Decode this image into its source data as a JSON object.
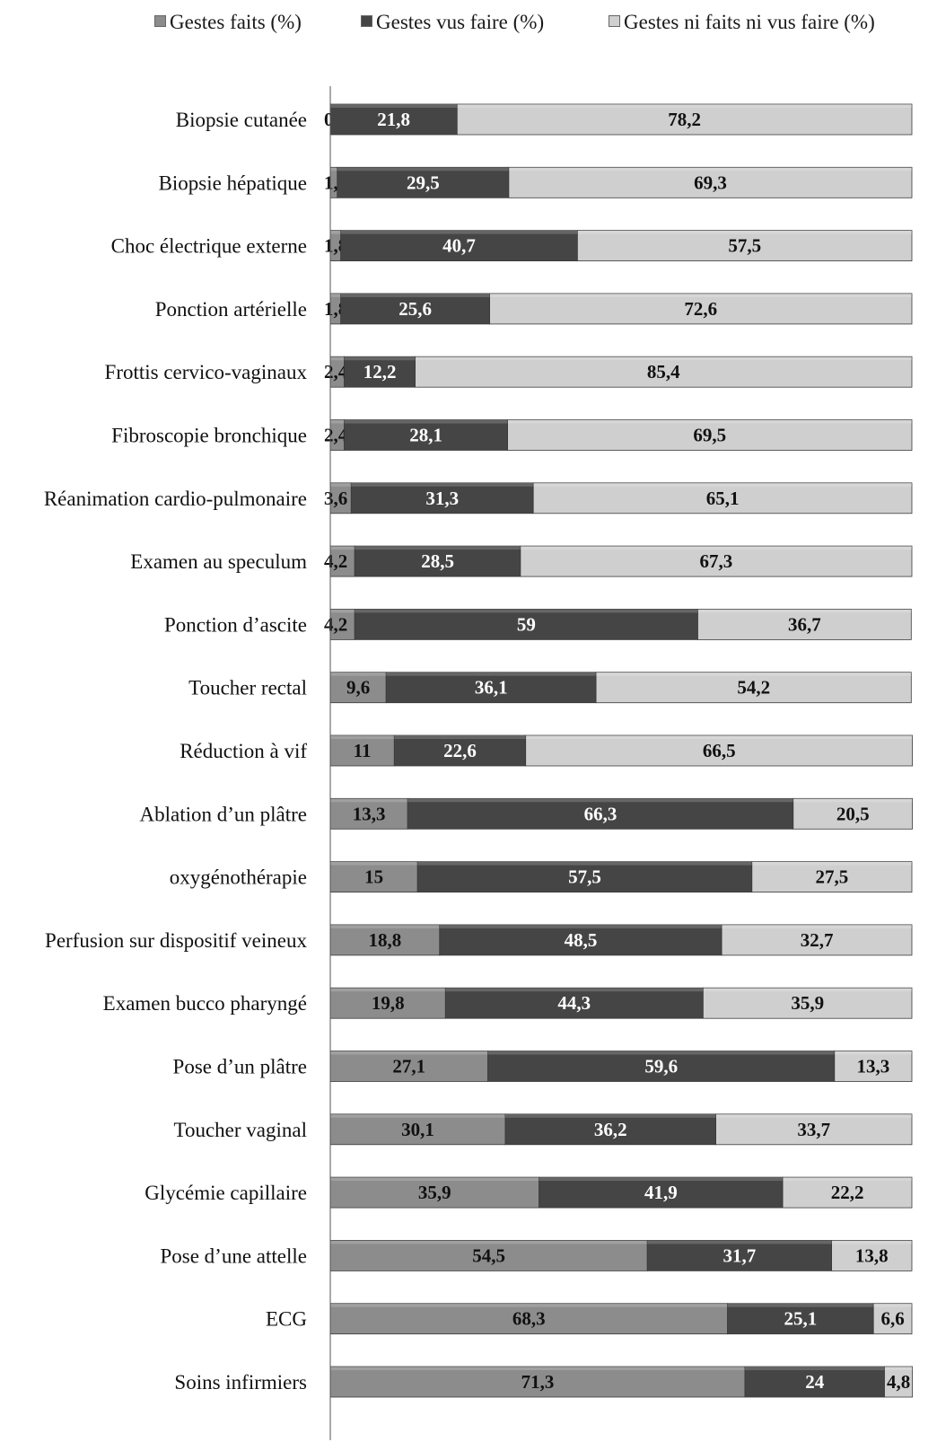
{
  "chart_data": {
    "type": "bar",
    "orientation": "horizontal",
    "stacked": true,
    "xlim": [
      0,
      100
    ],
    "legend_position": "top",
    "grid": false,
    "categories": [
      "Biopsie cutanée",
      "Biopsie hépatique",
      "Choc électrique externe",
      "Ponction artérielle",
      "Frottis cervico-vaginaux",
      "Fibroscopie bronchique",
      "Réanimation cardio-pulmonaire",
      "Examen au speculum",
      "Ponction d’ascite",
      "Toucher rectal",
      "Réduction à  vif",
      "Ablation d’un plâtre",
      "oxygénothérapie",
      "Perfusion sur dispositif veineux",
      "Examen bucco pharyngé",
      "Pose d’un plâtre",
      "Toucher vaginal",
      "Glycémie capillaire",
      "Pose d’une attelle",
      "ECG",
      "Soins infirmiers"
    ],
    "series": [
      {
        "name": "Gestes faits (%)",
        "color": "#8c8c8c",
        "label_color": "#111111",
        "values": [
          0,
          1.2,
          1.8,
          1.8,
          2.4,
          2.4,
          3.6,
          4.2,
          4.2,
          9.6,
          11,
          13.3,
          15,
          18.8,
          19.8,
          27.1,
          30.1,
          35.9,
          54.5,
          68.3,
          71.3
        ],
        "labels": [
          "0",
          "1,2",
          "1,8",
          "1,8",
          "2,4",
          "2,4",
          "3,6",
          "4,2",
          "4,2",
          "9,6",
          "11",
          "13,3",
          "15",
          "18,8",
          "19,8",
          "27,1",
          "30,1",
          "35,9",
          "54,5",
          "68,3",
          "71,3"
        ]
      },
      {
        "name": "Gestes vus faire (%)",
        "color": "#454545",
        "label_color": "#ffffff",
        "values": [
          21.8,
          29.5,
          40.7,
          25.6,
          12.2,
          28.1,
          31.3,
          28.5,
          59,
          36.1,
          22.6,
          66.3,
          57.5,
          48.5,
          44.3,
          59.6,
          36.2,
          41.9,
          31.7,
          25.1,
          24
        ],
        "labels": [
          "21,8",
          "29,5",
          "40,7",
          "25,6",
          "12,2",
          "28,1",
          "31,3",
          "28,5",
          "59",
          "36,1",
          "22,6",
          "66,3",
          "57,5",
          "48,5",
          "44,3",
          "59,6",
          "36,2",
          "41,9",
          "31,7",
          "25,1",
          "24"
        ]
      },
      {
        "name": "Gestes ni faits ni vus faire (%)",
        "color": "#cfcfcf",
        "label_color": "#111111",
        "values": [
          78.2,
          69.3,
          57.5,
          72.6,
          85.4,
          69.5,
          65.1,
          67.3,
          36.7,
          54.2,
          66.5,
          20.5,
          27.5,
          32.7,
          35.9,
          13.3,
          33.7,
          22.2,
          13.8,
          6.6,
          4.8
        ],
        "labels": [
          "78,2",
          "69,3",
          "57,5",
          "72,6",
          "85,4",
          "69,5",
          "65,1",
          "67,3",
          "36,7",
          "54,2",
          "66,5",
          "20,5",
          "27,5",
          "32,7",
          "35,9",
          "13,3",
          "33,7",
          "22,2",
          "13,8",
          "6,6",
          "4,8"
        ]
      }
    ]
  }
}
